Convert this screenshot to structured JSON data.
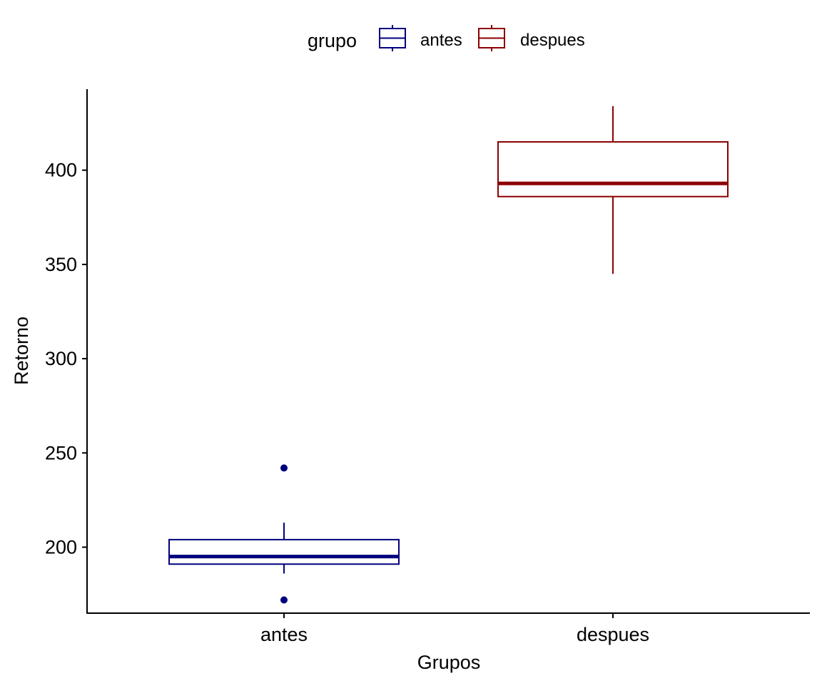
{
  "chart_data": {
    "type": "boxplot",
    "xlabel": "Grupos",
    "ylabel": "Retorno",
    "ylim": [
      165,
      443
    ],
    "yticks": [
      200,
      250,
      300,
      350,
      400
    ],
    "grid": false,
    "legend": {
      "title": "grupo",
      "position": "top",
      "entries": [
        {
          "label": "antes",
          "color": "#00007F"
        },
        {
          "label": "despues",
          "color": "#8B0000"
        }
      ]
    },
    "categories": [
      "antes",
      "despues"
    ],
    "boxes": [
      {
        "category": "antes",
        "group": "antes",
        "color": "#00007F",
        "whisker_low": 186,
        "q1": 191,
        "median": 195,
        "q3": 204,
        "whisker_high": 213,
        "outliers": [
          242,
          172
        ]
      },
      {
        "category": "despues",
        "group": "despues",
        "color": "#8B0000",
        "whisker_low": 345,
        "q1": 386,
        "median": 393,
        "q3": 415,
        "whisker_high": 434,
        "outliers": []
      }
    ]
  }
}
